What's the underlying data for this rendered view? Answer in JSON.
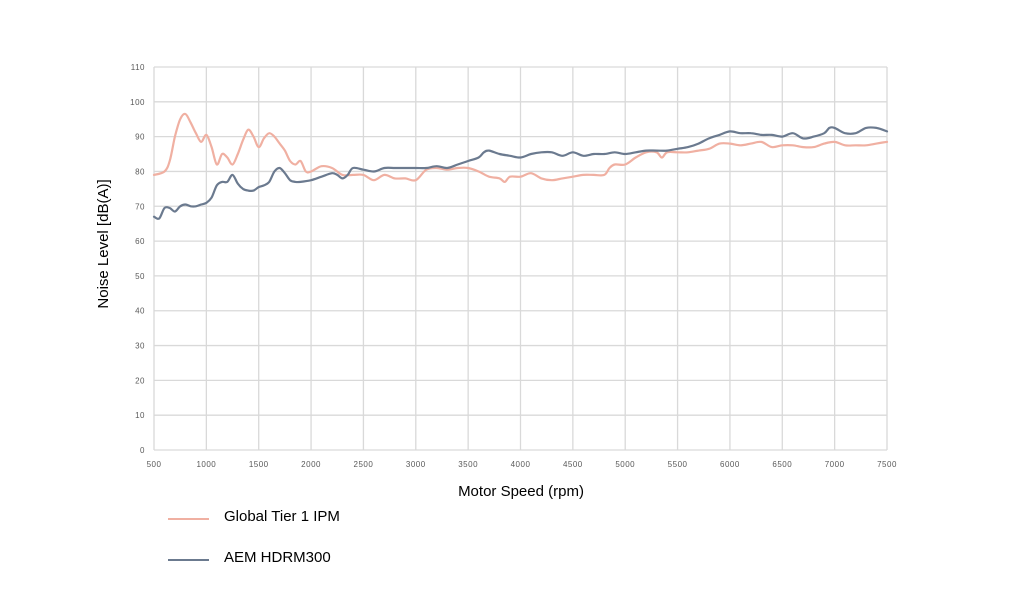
{
  "chart_data": {
    "type": "line",
    "title": "",
    "xlabel": "Motor Speed (rpm)",
    "ylabel": "Noise Level [dB(A)]",
    "xlim": [
      500,
      7500
    ],
    "ylim": [
      0,
      110
    ],
    "xticks": [
      500,
      1000,
      1500,
      2000,
      2500,
      3000,
      3500,
      4000,
      4500,
      5000,
      5500,
      6000,
      6500,
      7000,
      7500
    ],
    "yticks": [
      0,
      10,
      20,
      30,
      40,
      50,
      60,
      70,
      80,
      90,
      100,
      110
    ],
    "grid": true,
    "legend_position": "bottom-left",
    "series": [
      {
        "name": "Global Tier 1 IPM",
        "color": "#f0b0a2",
        "x": [
          500,
          600,
          650,
          700,
          750,
          800,
          850,
          900,
          950,
          1000,
          1050,
          1100,
          1150,
          1200,
          1250,
          1300,
          1350,
          1400,
          1450,
          1500,
          1550,
          1600,
          1650,
          1700,
          1750,
          1800,
          1850,
          1900,
          1950,
          2000,
          2100,
          2200,
          2300,
          2400,
          2500,
          2600,
          2700,
          2800,
          2900,
          3000,
          3100,
          3200,
          3300,
          3400,
          3500,
          3600,
          3700,
          3800,
          3850,
          3900,
          4000,
          4100,
          4200,
          4300,
          4400,
          4500,
          4600,
          4700,
          4800,
          4850,
          4900,
          5000,
          5100,
          5200,
          5300,
          5350,
          5400,
          5500,
          5600,
          5700,
          5800,
          5900,
          6000,
          6100,
          6200,
          6300,
          6400,
          6500,
          6600,
          6700,
          6800,
          6900,
          7000,
          7100,
          7200,
          7300,
          7400,
          7500
        ],
        "y": [
          79,
          80,
          83,
          90,
          95,
          96.5,
          94,
          91,
          88.5,
          90.5,
          87,
          82,
          85,
          84,
          82,
          85,
          89,
          92,
          90,
          87,
          89.5,
          91,
          90,
          88,
          86,
          83,
          82,
          83,
          80,
          80,
          81.5,
          81,
          79,
          79,
          79,
          77.5,
          79,
          78,
          78,
          77.5,
          80.5,
          81,
          80.5,
          81,
          81,
          80,
          78.5,
          78,
          77,
          78.5,
          78.5,
          79.5,
          78,
          77.5,
          78,
          78.5,
          79,
          79,
          79,
          81,
          82,
          82,
          84,
          85.5,
          85.5,
          84,
          85.5,
          85.5,
          85.5,
          86,
          86.5,
          88,
          88,
          87.5,
          88,
          88.5,
          87,
          87.5,
          87.5,
          87,
          87,
          88,
          88.5,
          87.5,
          87.5,
          87.5,
          88,
          88.5
        ]
      },
      {
        "name": "AEM HDRM300",
        "color": "#6b7a8f",
        "x": [
          500,
          550,
          600,
          650,
          700,
          750,
          800,
          850,
          900,
          950,
          1000,
          1050,
          1100,
          1150,
          1200,
          1250,
          1300,
          1350,
          1400,
          1450,
          1500,
          1550,
          1600,
          1650,
          1700,
          1750,
          1800,
          1850,
          1900,
          2000,
          2100,
          2200,
          2250,
          2300,
          2350,
          2400,
          2500,
          2600,
          2700,
          2800,
          2900,
          3000,
          3100,
          3200,
          3300,
          3400,
          3500,
          3600,
          3650,
          3700,
          3800,
          3900,
          4000,
          4100,
          4200,
          4300,
          4400,
          4500,
          4600,
          4700,
          4800,
          4900,
          5000,
          5100,
          5200,
          5300,
          5400,
          5500,
          5600,
          5700,
          5800,
          5900,
          6000,
          6100,
          6200,
          6300,
          6400,
          6500,
          6600,
          6700,
          6800,
          6900,
          6950,
          7000,
          7100,
          7200,
          7300,
          7400,
          7500
        ],
        "y": [
          67,
          66.5,
          69.5,
          69.5,
          68.5,
          70,
          70.5,
          70,
          70,
          70.5,
          71,
          72.5,
          76,
          77,
          77,
          79,
          76.5,
          75,
          74.5,
          74.5,
          75.5,
          76,
          77,
          80,
          81,
          79.5,
          77.5,
          77,
          77,
          77.5,
          78.5,
          79.5,
          79,
          78,
          79,
          81,
          80.5,
          80,
          81,
          81,
          81,
          81,
          81,
          81.5,
          81,
          82,
          83,
          84,
          85.5,
          86,
          85,
          84.5,
          84,
          85,
          85.5,
          85.5,
          84.5,
          85.5,
          84.5,
          85,
          85,
          85.5,
          85,
          85.5,
          86,
          86,
          86,
          86.5,
          87,
          88,
          89.5,
          90.5,
          91.5,
          91,
          91,
          90.5,
          90.5,
          90,
          91,
          89.5,
          90,
          91,
          92.5,
          92.5,
          91,
          91,
          92.5,
          92.5,
          91.5
        ]
      }
    ]
  }
}
